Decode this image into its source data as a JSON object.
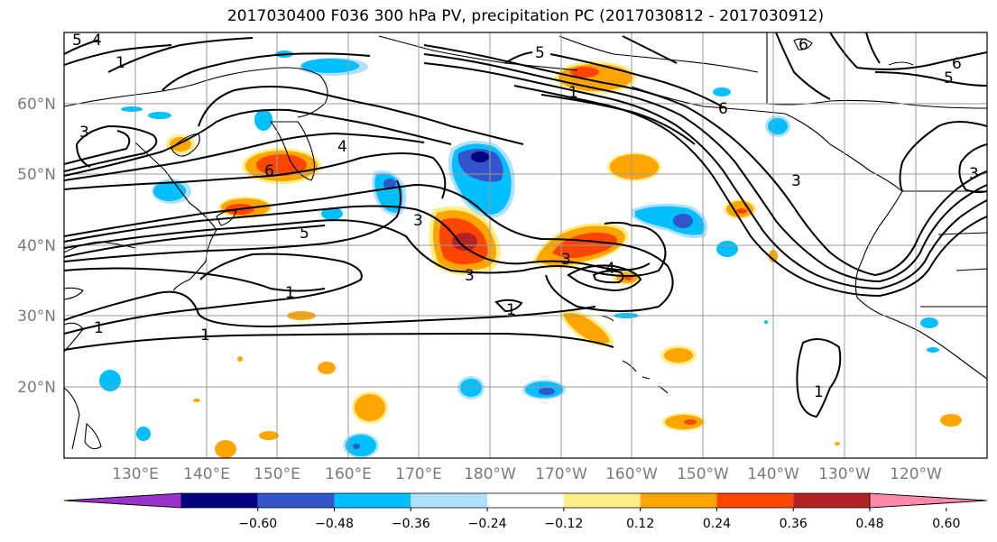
{
  "title": "2017030400 F036 300 hPa PV, precipitation PC (2017030812 - 2017030912)",
  "map": {
    "lon_labels": [
      "130°E",
      "140°E",
      "150°E",
      "160°E",
      "170°E",
      "180°W",
      "170°W",
      "160°W",
      "150°W",
      "140°W",
      "130°W",
      "120°W"
    ],
    "lat_labels": [
      "60°N",
      "50°N",
      "40°N",
      "30°N",
      "20°N"
    ],
    "pv_contour_labels": [
      "1",
      "1",
      "1",
      "1",
      "1",
      "1",
      "1",
      "3",
      "3",
      "3",
      "3",
      "3",
      "3",
      "4",
      "4",
      "4",
      "5",
      "5",
      "5",
      "5",
      "6",
      "6",
      "6",
      "6"
    ]
  },
  "colorbar": {
    "colors": [
      "#9933cc",
      "#000080",
      "#3355cc",
      "#00bfff",
      "#b0e0ff",
      "#ffffff",
      "#ffee88",
      "#ffa500",
      "#ff4500",
      "#b22222",
      "#ff88aa"
    ],
    "tick_labels": [
      "−0.60",
      "−0.48",
      "−0.36",
      "−0.24",
      "−0.12",
      "0.12",
      "0.24",
      "0.36",
      "0.48",
      "0.60"
    ]
  }
}
